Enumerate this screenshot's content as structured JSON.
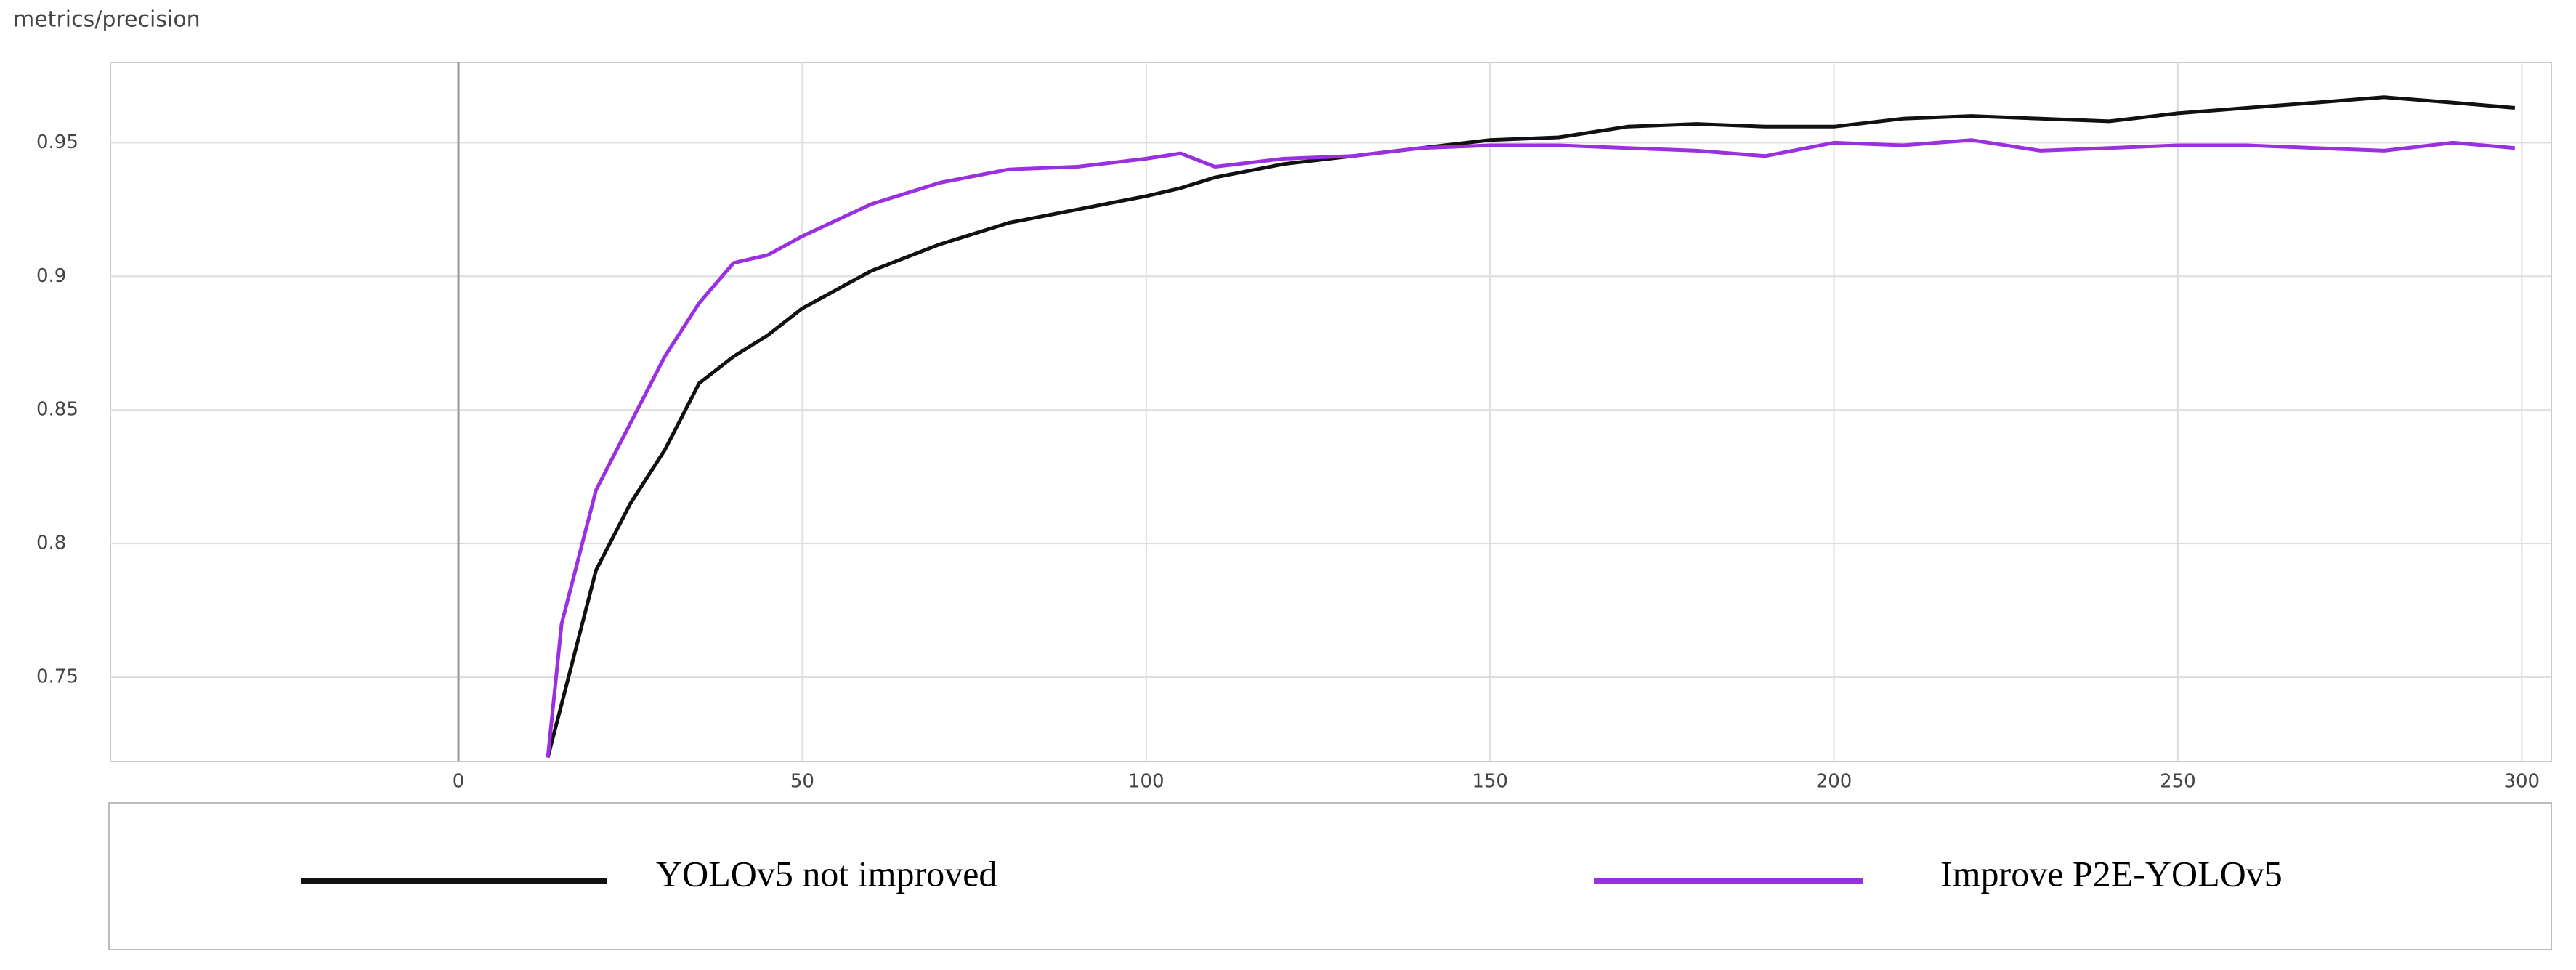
{
  "chart_data": {
    "type": "line",
    "title": "metrics/precision",
    "x": [
      13,
      15,
      20,
      25,
      30,
      35,
      40,
      45,
      50,
      60,
      70,
      80,
      90,
      100,
      105,
      110,
      120,
      130,
      140,
      150,
      160,
      170,
      180,
      190,
      200,
      210,
      220,
      230,
      240,
      250,
      260,
      270,
      280,
      290,
      299
    ],
    "series": [
      {
        "name": "YOLOv5 not improved",
        "color": "#111111",
        "values": [
          0.72,
          0.74,
          0.79,
          0.815,
          0.835,
          0.86,
          0.87,
          0.878,
          0.888,
          0.902,
          0.912,
          0.92,
          0.925,
          0.93,
          0.933,
          0.937,
          0.942,
          0.945,
          0.948,
          0.951,
          0.952,
          0.956,
          0.957,
          0.956,
          0.956,
          0.959,
          0.96,
          0.959,
          0.958,
          0.961,
          0.963,
          0.965,
          0.967,
          0.965,
          0.963
        ]
      },
      {
        "name": "Improve  P2E-YOLOv5",
        "color": "#9b30e0",
        "values": [
          0.72,
          0.77,
          0.82,
          0.845,
          0.87,
          0.89,
          0.905,
          0.908,
          0.915,
          0.927,
          0.935,
          0.94,
          0.941,
          0.944,
          0.946,
          0.941,
          0.944,
          0.945,
          0.948,
          0.949,
          0.949,
          0.948,
          0.947,
          0.945,
          0.95,
          0.949,
          0.951,
          0.947,
          0.948,
          0.949,
          0.949,
          0.948,
          0.947,
          0.95,
          0.948
        ]
      }
    ],
    "xlim": [
      -50.6,
      304.3
    ],
    "ylim": [
      0.7185,
      0.98
    ],
    "xticks": [
      0,
      50,
      100,
      150,
      200,
      250,
      300
    ],
    "yticks": [
      0.75,
      0.8,
      0.85,
      0.9,
      0.95
    ],
    "grid": true
  }
}
